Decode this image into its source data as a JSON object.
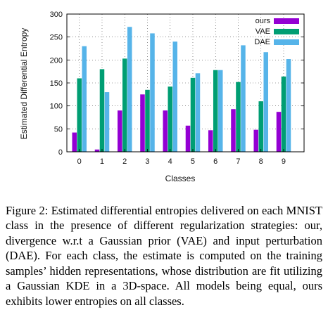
{
  "chart_data": {
    "type": "bar",
    "title": "",
    "xlabel": "Classes",
    "ylabel": "Estimated Differential Entropy",
    "categories": [
      "0",
      "1",
      "2",
      "3",
      "4",
      "5",
      "6",
      "7",
      "8",
      "9"
    ],
    "ylim": [
      0,
      300
    ],
    "yticks": [
      "0",
      "50",
      "100",
      "150",
      "200",
      "250",
      "300"
    ],
    "grid": true,
    "legend_position": "top-right",
    "series": [
      {
        "name": "ours",
        "color": "#9400d3",
        "values": [
          42,
          5,
          90,
          125,
          90,
          57,
          47,
          93,
          48,
          87
        ]
      },
      {
        "name": "VAE",
        "color": "#009e73",
        "values": [
          160,
          180,
          203,
          135,
          142,
          161,
          178,
          152,
          110,
          164
        ]
      },
      {
        "name": "DAE",
        "color": "#56b4e9",
        "values": [
          230,
          130,
          272,
          258,
          240,
          171,
          178,
          232,
          217,
          202
        ]
      }
    ]
  },
  "caption": "Figure 2: Estimated differential entropies delivered on each MNIST class in the presence of different regularization strategies: our, divergence w.r.t a Gaussian prior (VAE) and input perturbation (DAE). For each class, the estimate is computed on the training samples’ hidden representations, whose distribution are fit utilizing a Gaussian KDE in a 3D-space. All models being equal, ours exhibits lower entropies on all classes."
}
